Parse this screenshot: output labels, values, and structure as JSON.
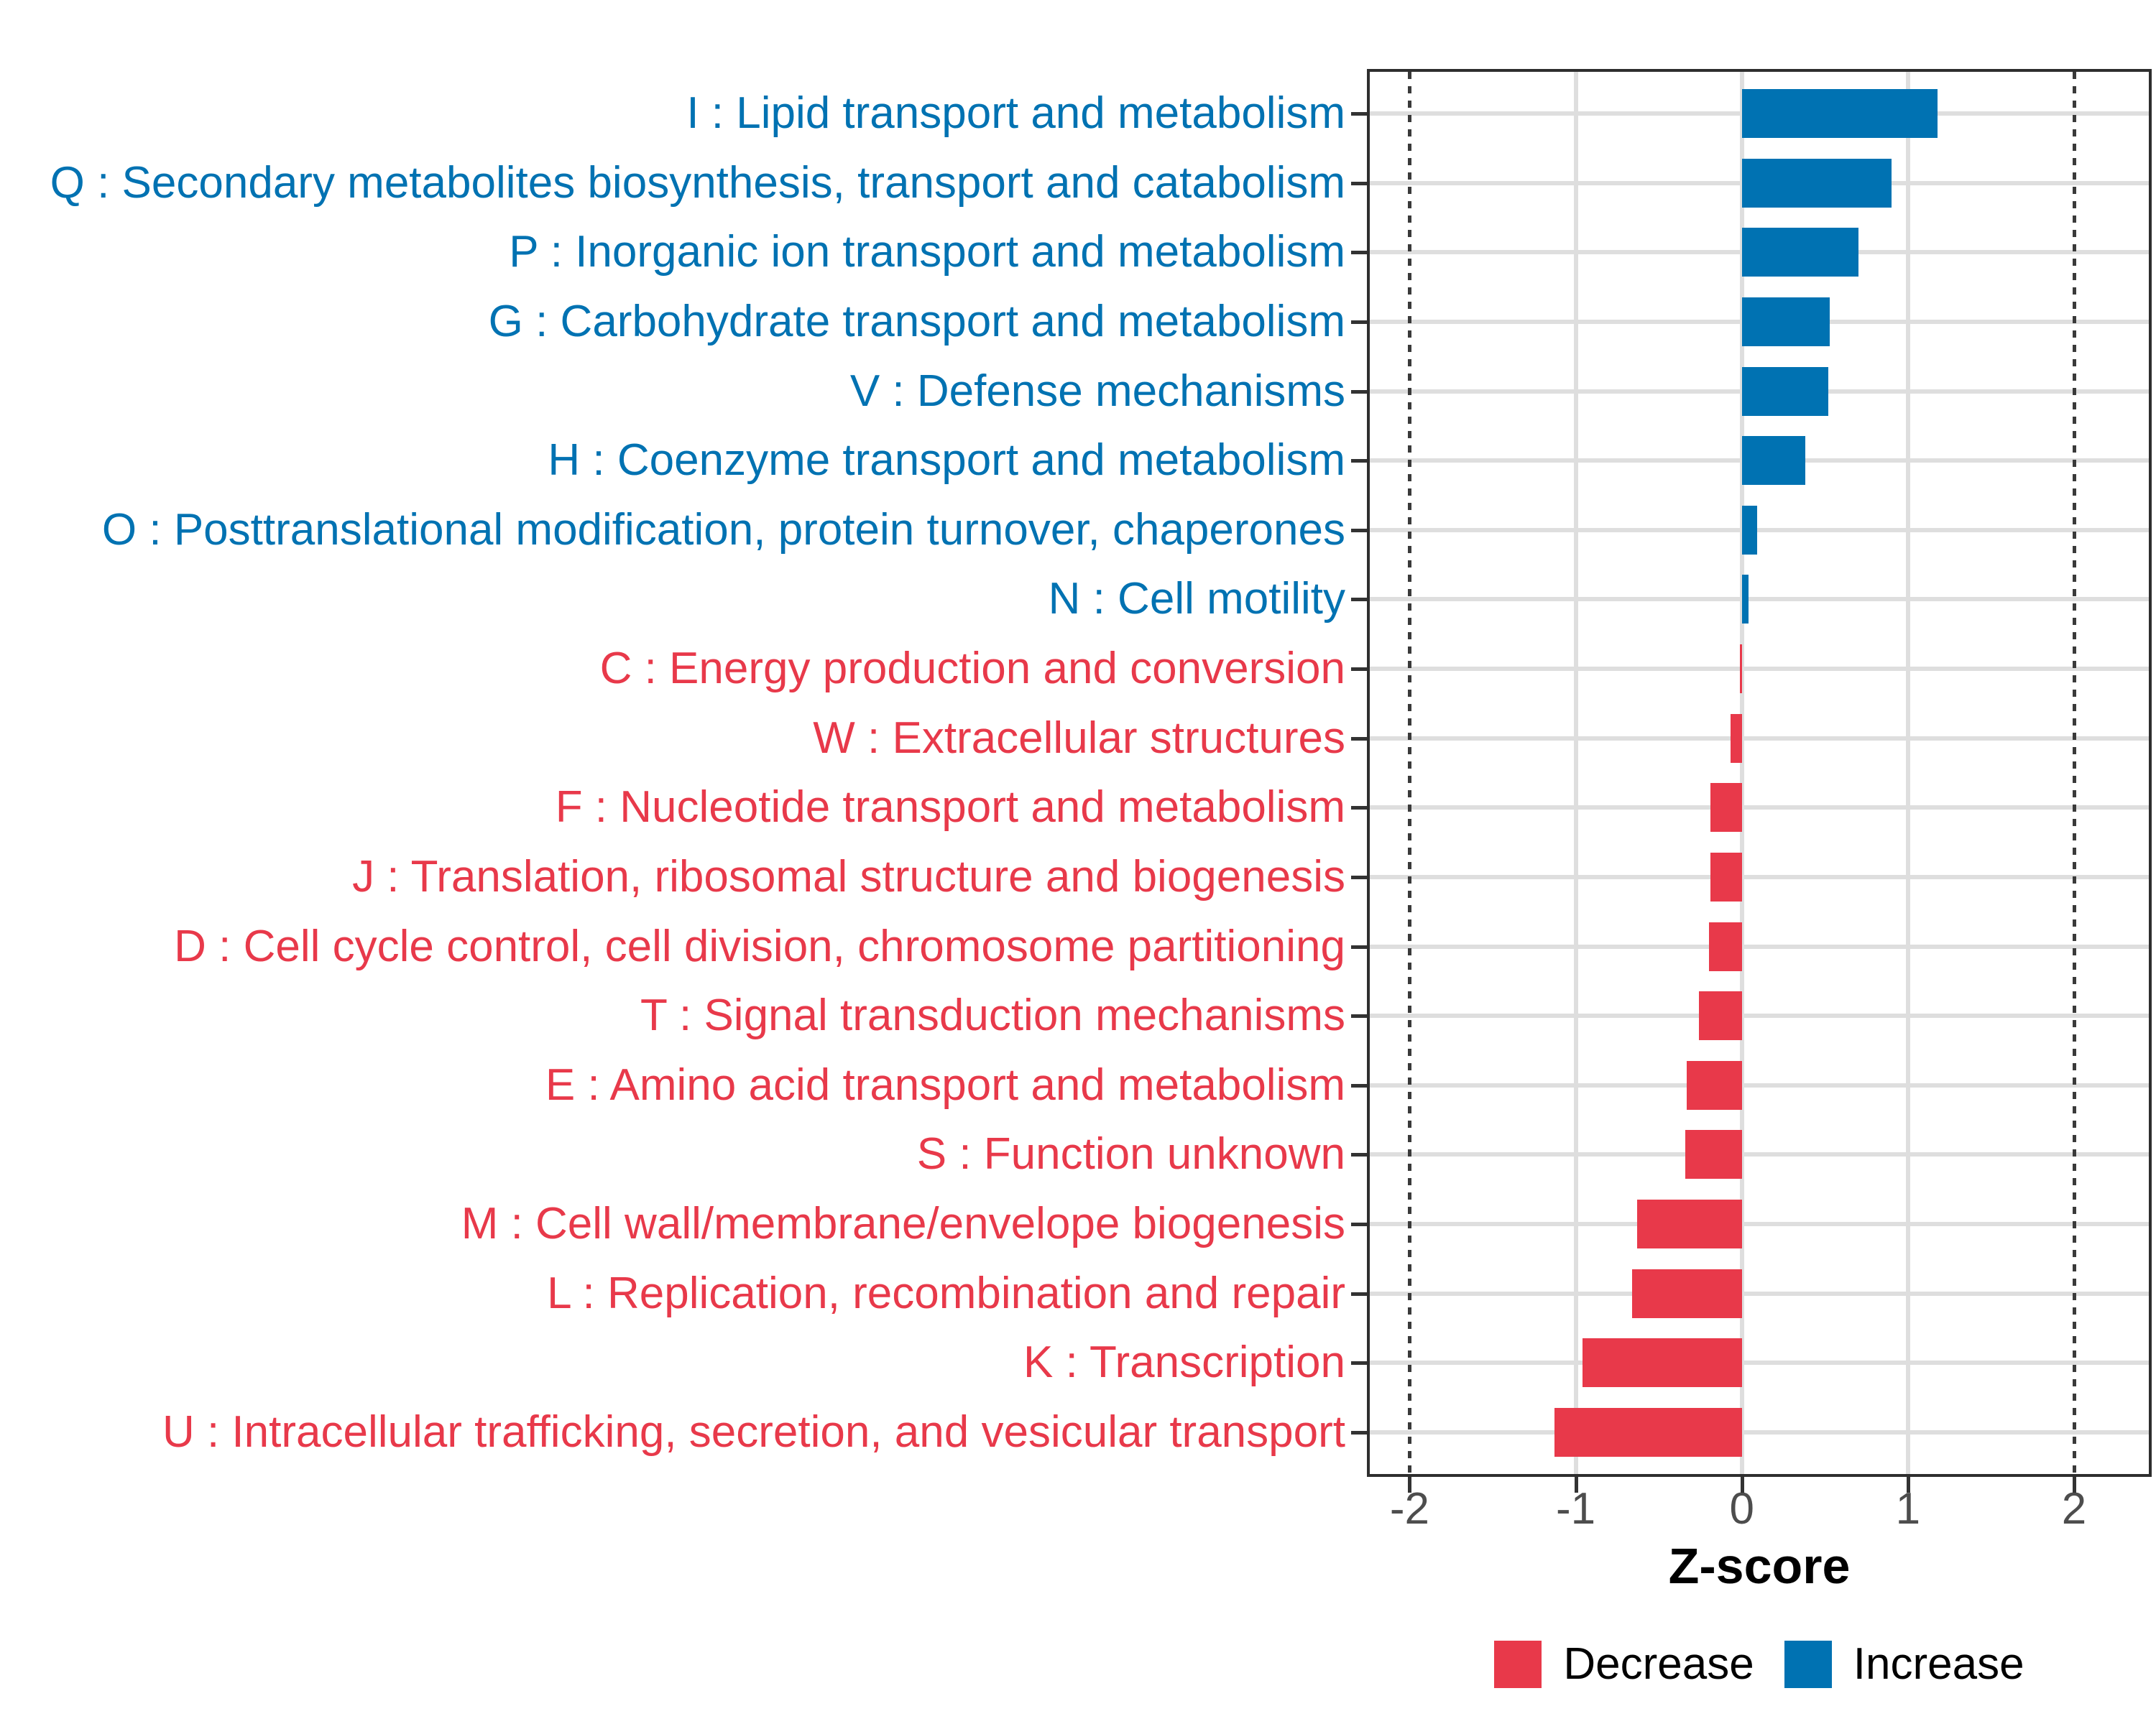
{
  "colors": {
    "increase": "#0072B2",
    "decrease": "#E8394A",
    "grid": "#DEDEDE",
    "axis_text": "#4D4D4D",
    "panel_border": "#2E2E2E",
    "reference_line": "#3A3A3A",
    "background": "#FFFFFF"
  },
  "chart_data": {
    "type": "bar",
    "orientation": "horizontal",
    "title": "",
    "xlabel": "Z-score",
    "ylabel": "",
    "xlim": [
      -2.24,
      2.45
    ],
    "x_ticks": [
      -2,
      -1,
      0,
      1,
      2
    ],
    "grid_x_values": [
      -1,
      0,
      1
    ],
    "reference_lines": [
      -2,
      2
    ],
    "grid": true,
    "legend_position": "bottom",
    "legend": {
      "items": [
        {
          "label": "Decrease",
          "color": "#E8394A"
        },
        {
          "label": "Increase",
          "color": "#0072B2"
        }
      ]
    },
    "categories": [
      {
        "code": "I",
        "label": "I : Lipid transport and metabolism",
        "value": 1.18,
        "direction": "Increase"
      },
      {
        "code": "Q",
        "label": "Q : Secondary metabolites biosynthesis, transport and catabolism",
        "value": 0.9,
        "direction": "Increase"
      },
      {
        "code": "P",
        "label": "P : Inorganic ion transport and metabolism",
        "value": 0.7,
        "direction": "Increase"
      },
      {
        "code": "G",
        "label": "G : Carbohydrate transport and metabolism",
        "value": 0.53,
        "direction": "Increase"
      },
      {
        "code": "V",
        "label": "V : Defense mechanisms",
        "value": 0.52,
        "direction": "Increase"
      },
      {
        "code": "H",
        "label": "H : Coenzyme transport and metabolism",
        "value": 0.38,
        "direction": "Increase"
      },
      {
        "code": "O",
        "label": "O : Posttranslational modification, protein turnover, chaperones",
        "value": 0.09,
        "direction": "Increase"
      },
      {
        "code": "N",
        "label": "N : Cell motility",
        "value": 0.04,
        "direction": "Increase"
      },
      {
        "code": "C",
        "label": "C : Energy production and conversion",
        "value": -0.01,
        "direction": "Decrease"
      },
      {
        "code": "W",
        "label": "W : Extracellular structures",
        "value": -0.07,
        "direction": "Decrease"
      },
      {
        "code": "F",
        "label": "F : Nucleotide transport and metabolism",
        "value": -0.19,
        "direction": "Decrease"
      },
      {
        "code": "J",
        "label": "J : Translation, ribosomal structure and biogenesis",
        "value": -0.19,
        "direction": "Decrease"
      },
      {
        "code": "D",
        "label": "D : Cell cycle control, cell division, chromosome partitioning",
        "value": -0.2,
        "direction": "Decrease"
      },
      {
        "code": "T",
        "label": "T : Signal transduction mechanisms",
        "value": -0.26,
        "direction": "Decrease"
      },
      {
        "code": "E",
        "label": "E : Amino acid transport and metabolism",
        "value": -0.33,
        "direction": "Decrease"
      },
      {
        "code": "S",
        "label": "S : Function unknown",
        "value": -0.34,
        "direction": "Decrease"
      },
      {
        "code": "M",
        "label": "M : Cell wall/membrane/envelope biogenesis",
        "value": -0.63,
        "direction": "Decrease"
      },
      {
        "code": "L",
        "label": "L : Replication, recombination and repair",
        "value": -0.66,
        "direction": "Decrease"
      },
      {
        "code": "K",
        "label": "K : Transcription",
        "value": -0.96,
        "direction": "Decrease"
      },
      {
        "code": "U",
        "label": "U : Intracellular trafficking, secretion, and vesicular transport",
        "value": -1.13,
        "direction": "Decrease"
      }
    ]
  }
}
